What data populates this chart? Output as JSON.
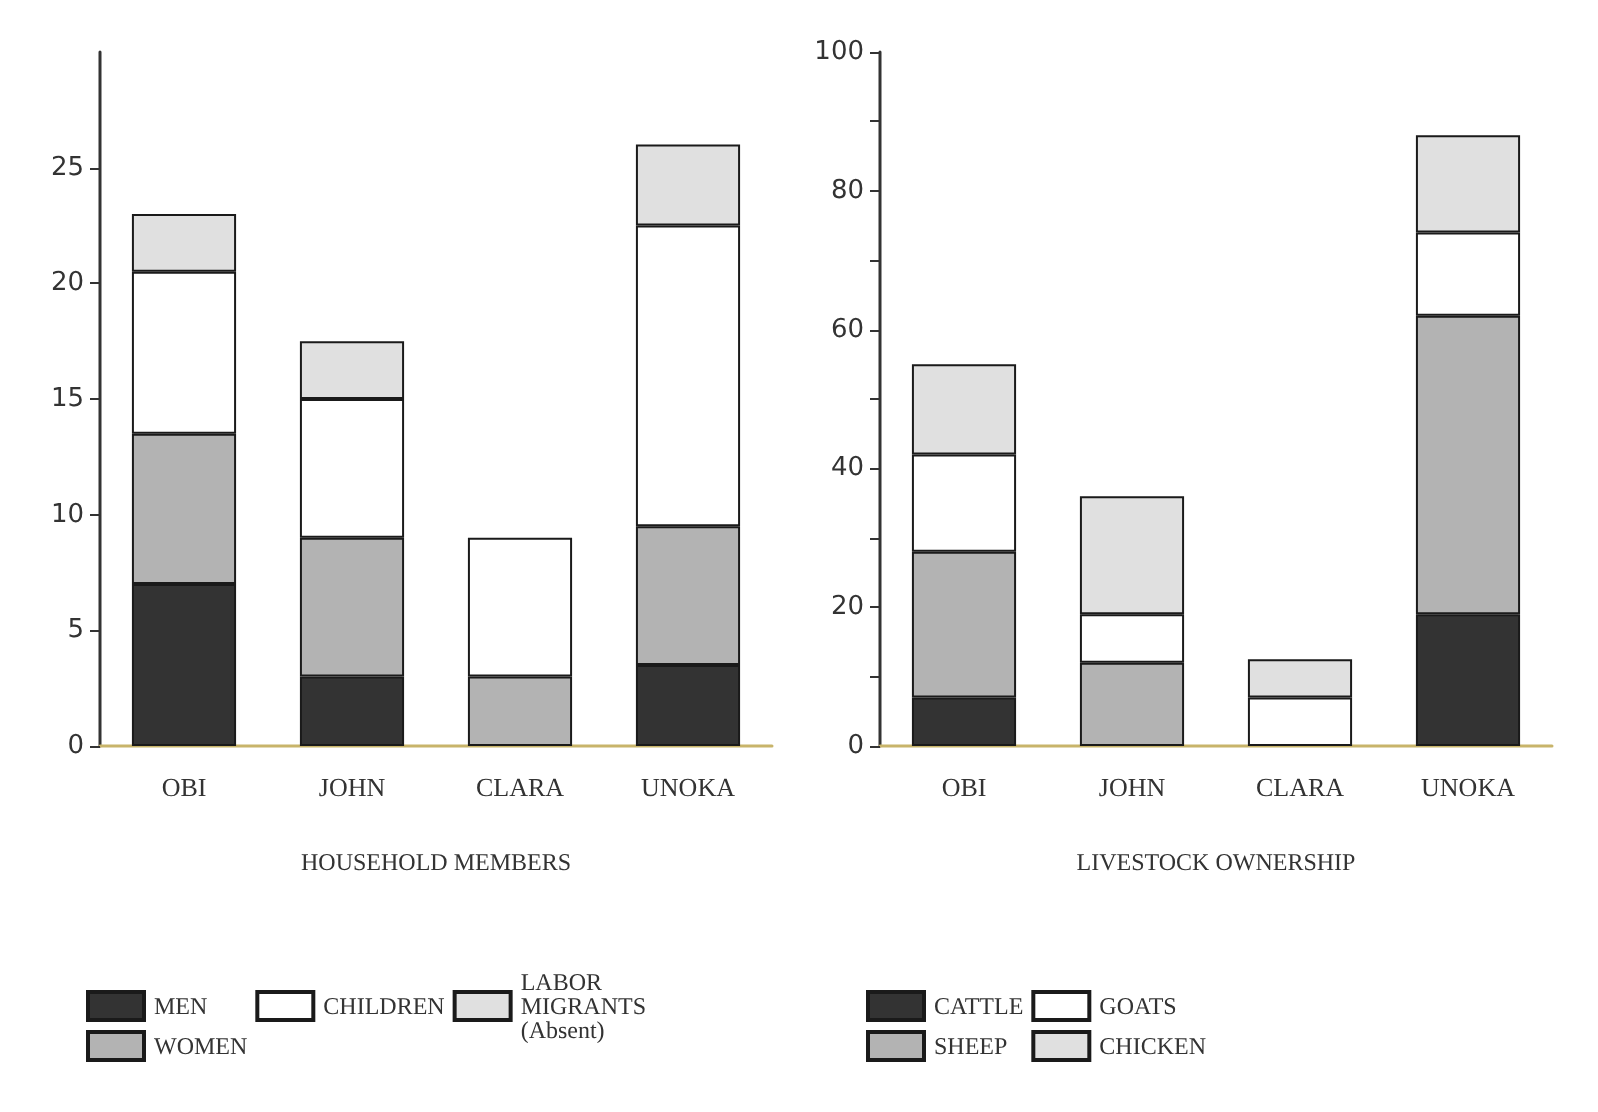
{
  "chart_data": [
    {
      "type": "bar",
      "stacked": true,
      "xlabel": "HOUSEHOLD MEMBERS",
      "categories": [
        "OBI",
        "JOHN",
        "CLARA",
        "UNOKA"
      ],
      "ylim": [
        0,
        30
      ],
      "yticks": [
        0,
        5,
        10,
        15,
        20,
        25
      ],
      "grid": false,
      "legend": "bottom",
      "series": [
        {
          "name": "MEN",
          "color": "#333333",
          "values": [
            7,
            3,
            null,
            3.5
          ]
        },
        {
          "name": "WOMEN",
          "color": "#b3b3b3",
          "values": [
            6.5,
            6,
            3,
            6
          ]
        },
        {
          "name": "CHILDREN",
          "color": "#ffffff",
          "values": [
            7,
            6,
            6,
            13
          ]
        },
        {
          "name": "LABOR MIGRANTS (Absent)",
          "color": "#e0e0e0",
          "values": [
            2.5,
            2.5,
            null,
            3.5
          ]
        }
      ]
    },
    {
      "type": "bar",
      "stacked": true,
      "xlabel": "LIVESTOCK OWNERSHIP",
      "categories": [
        "OBI",
        "JOHN",
        "CLARA",
        "UNOKA"
      ],
      "ylim": [
        0,
        100
      ],
      "yticks": [
        0,
        {
          "value": 10,
          "label": null
        },
        20,
        {
          "value": 30,
          "label": null
        },
        40,
        {
          "value": 50,
          "label": null
        },
        60,
        {
          "value": 70,
          "label": null
        },
        80,
        {
          "value": 90,
          "label": null
        },
        100
      ],
      "grid": false,
      "legend": "bottom",
      "series": [
        {
          "name": "CATTLE",
          "color": "#333333",
          "values": [
            7,
            null,
            null,
            19
          ]
        },
        {
          "name": "SHEEP",
          "color": "#b3b3b3",
          "values": [
            21,
            12,
            null,
            43
          ]
        },
        {
          "name": "GOATS",
          "color": "#ffffff",
          "values": [
            14,
            7,
            7,
            12
          ]
        },
        {
          "name": "CHICKEN",
          "color": "#e0e0e0",
          "values": [
            13,
            17,
            5.5,
            14
          ]
        }
      ]
    }
  ]
}
